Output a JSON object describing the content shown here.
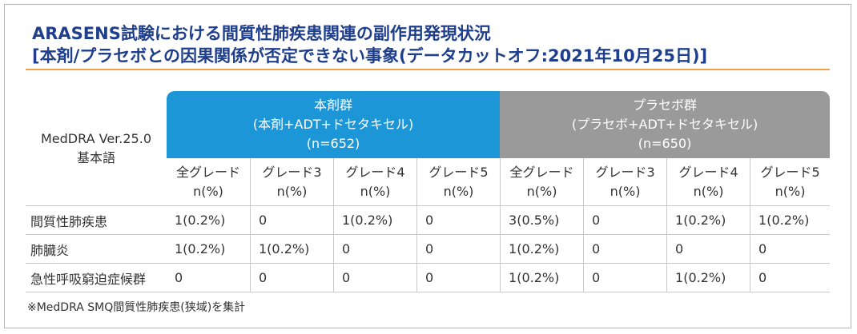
{
  "title": {
    "line1": "ARASENS試験における間質性肺疾患関連の副作用発現状況",
    "line2": "[本剤/プラセボとの因果関係が否定できない事象(データカットオフ:2021年10月25日)]"
  },
  "table": {
    "corner": {
      "line1": "MedDRA Ver.25.0",
      "line2": "基本語"
    },
    "groups": [
      {
        "line1": "本剤群",
        "line2": "(本剤+ADT+ドセタキセル)",
        "line3": "(n=652)",
        "color": "#1d96d7"
      },
      {
        "line1": "プラセボ群",
        "line2": "(プラセボ+ADT+ドセタキセル)",
        "line3": "(n=650)",
        "color": "#9a9a9a"
      }
    ],
    "subheaders": [
      {
        "grade": "全グレード",
        "unit": "n(%)"
      },
      {
        "grade": "グレード3",
        "unit": "n(%)"
      },
      {
        "grade": "グレード4",
        "unit": "n(%)"
      },
      {
        "grade": "グレード5",
        "unit": "n(%)"
      },
      {
        "grade": "全グレード",
        "unit": "n(%)"
      },
      {
        "grade": "グレード3",
        "unit": "n(%)"
      },
      {
        "grade": "グレード4",
        "unit": "n(%)"
      },
      {
        "grade": "グレード5",
        "unit": "n(%)"
      }
    ],
    "rows": [
      {
        "label": "間質性肺疾患",
        "values": [
          "1(0.2%)",
          "0",
          "1(0.2%)",
          "0",
          "3(0.5%)",
          "0",
          "1(0.2%)",
          "1(0.2%)"
        ]
      },
      {
        "label": "肺臓炎",
        "values": [
          "1(0.2%)",
          "1(0.2%)",
          "0",
          "0",
          "1(0.2%)",
          "0",
          "0",
          "0"
        ]
      },
      {
        "label": "急性呼吸窮迫症候群",
        "values": [
          "0",
          "0",
          "0",
          "0",
          "1(0.2%)",
          "0",
          "1(0.2%)",
          "0"
        ]
      }
    ]
  },
  "footnote": "※MedDRA SMQ間質性肺疾患(狭域)を集計"
}
